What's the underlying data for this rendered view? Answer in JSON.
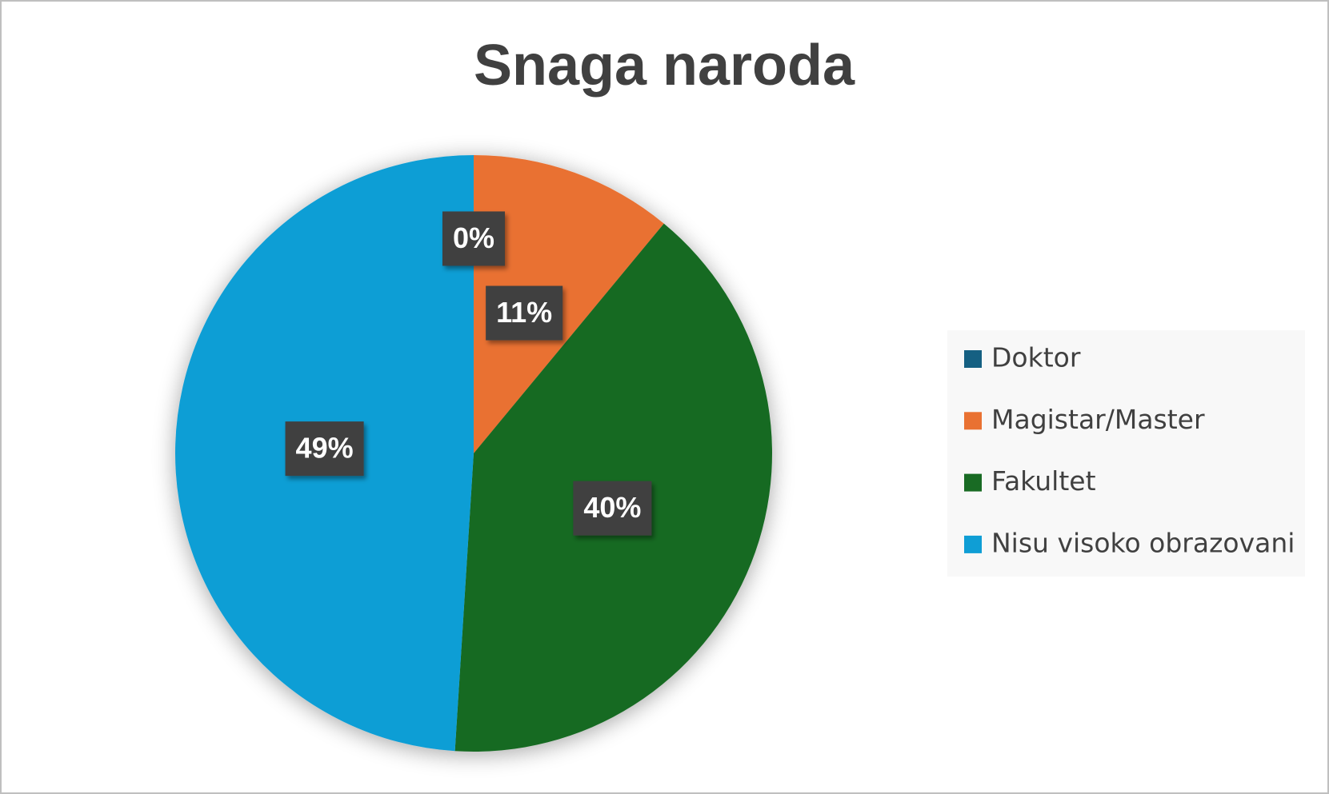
{
  "chart_data": {
    "type": "pie",
    "title": "Snaga naroda",
    "categories": [
      "Doktor",
      "Magistar/Master",
      "Fakultet",
      "Nisu visoko obrazovani"
    ],
    "values": [
      0,
      11,
      40,
      49
    ],
    "value_labels": [
      "0%",
      "11%",
      "40%",
      "49%"
    ],
    "colors": [
      "#156082",
      "#e97132",
      "#196b24",
      "#0f9ed5"
    ],
    "legend": "right"
  }
}
